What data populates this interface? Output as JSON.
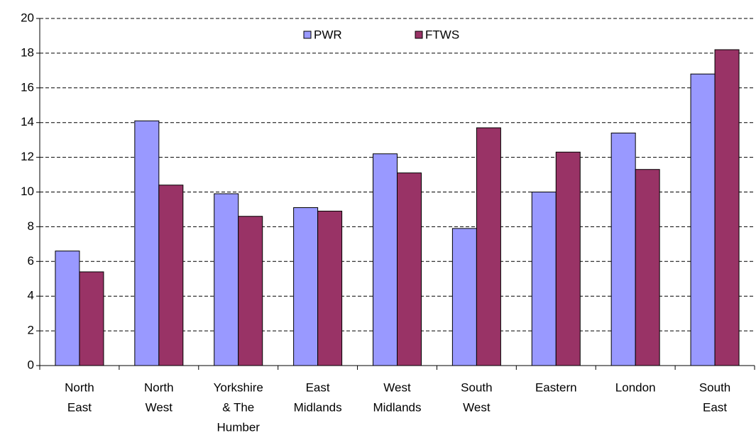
{
  "chart_data": {
    "type": "bar",
    "categories": [
      [
        "North",
        "East"
      ],
      [
        "North",
        "West"
      ],
      [
        "Yorkshire",
        "& The",
        "Humber"
      ],
      [
        "East",
        "Midlands"
      ],
      [
        "West",
        "Midlands"
      ],
      [
        "South",
        "West"
      ],
      [
        "Eastern"
      ],
      [
        "London"
      ],
      [
        "South",
        "East"
      ]
    ],
    "series": [
      {
        "name": "PWR",
        "color": "#9999ff",
        "values": [
          6.6,
          14.1,
          9.9,
          9.1,
          12.2,
          7.9,
          10.0,
          13.4,
          16.8
        ]
      },
      {
        "name": "FTWS",
        "color": "#993366",
        "values": [
          5.4,
          10.4,
          8.6,
          8.9,
          11.1,
          13.7,
          12.3,
          11.3,
          18.2
        ]
      }
    ],
    "ylim": [
      0,
      20
    ],
    "yticks": [
      0,
      2,
      4,
      6,
      8,
      10,
      12,
      14,
      16,
      18,
      20
    ],
    "grid": true,
    "legend": "top"
  }
}
